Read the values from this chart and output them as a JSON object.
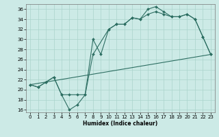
{
  "xlabel": "Humidex (Indice chaleur)",
  "bg_color": "#cceae6",
  "line_color": "#2d6e62",
  "grid_color": "#aad4cc",
  "xlim": [
    -0.5,
    23.5
  ],
  "ylim": [
    15.5,
    37.0
  ],
  "yticks": [
    16,
    18,
    20,
    22,
    24,
    26,
    28,
    30,
    32,
    34,
    36
  ],
  "xticks": [
    0,
    1,
    2,
    3,
    4,
    5,
    6,
    7,
    8,
    9,
    10,
    11,
    12,
    13,
    14,
    15,
    16,
    17,
    18,
    19,
    20,
    21,
    22,
    23
  ],
  "curve1_x": [
    0,
    1,
    2,
    3,
    4,
    5,
    6,
    7,
    8,
    9,
    10,
    11,
    12,
    13,
    14,
    15,
    16,
    17,
    18,
    19,
    20,
    21,
    22,
    23
  ],
  "curve1_y": [
    21.0,
    20.5,
    21.5,
    22.5,
    19.0,
    16.0,
    17.0,
    19.0,
    30.0,
    27.0,
    32.0,
    33.0,
    33.0,
    34.3,
    34.0,
    36.0,
    36.5,
    35.5,
    34.5,
    34.5,
    35.0,
    34.0,
    30.5,
    27.0
  ],
  "curve2_x": [
    0,
    1,
    2,
    3,
    4,
    5,
    6,
    7,
    8,
    10,
    11,
    12,
    13,
    14,
    15,
    16,
    17,
    18,
    19,
    20,
    21,
    22,
    23
  ],
  "curve2_y": [
    21.0,
    20.5,
    21.5,
    22.5,
    19.0,
    19.0,
    19.0,
    19.0,
    27.0,
    32.0,
    33.0,
    33.0,
    34.3,
    34.0,
    35.0,
    35.5,
    35.0,
    34.5,
    34.5,
    35.0,
    34.0,
    30.5,
    27.0
  ],
  "line3_x": [
    0,
    23
  ],
  "line3_y": [
    21.0,
    27.0
  ]
}
